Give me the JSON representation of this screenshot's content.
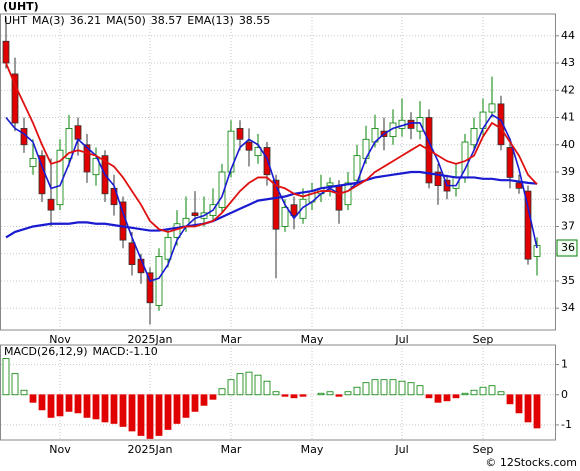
{
  "chart_data": [
    {
      "type": "candlestick",
      "title": "(UHT)",
      "ticker": "UHT",
      "categories": [
        null,
        null,
        null,
        null,
        null,
        null,
        "Nov",
        null,
        null,
        null,
        null,
        null,
        null,
        null,
        null,
        null,
        "2025Jan",
        null,
        null,
        null,
        null,
        null,
        null,
        null,
        null,
        "Mar",
        null,
        null,
        null,
        null,
        null,
        null,
        null,
        null,
        "May",
        null,
        null,
        null,
        null,
        null,
        null,
        null,
        null,
        null,
        "Jul",
        null,
        null,
        null,
        null,
        null,
        null,
        null,
        null,
        "Sep",
        null,
        null,
        null,
        null,
        null,
        null
      ],
      "open": [
        43.8,
        42.6,
        40.6,
        39.2,
        39.6,
        38.0,
        37.8,
        39.5,
        40.7,
        40.0,
        38.9,
        39.6,
        38.4,
        37.9,
        36.4,
        35.8,
        35.3,
        34.1,
        35.8,
        36.6,
        37.0,
        37.5,
        37.3,
        37.4,
        37.7,
        39.0,
        40.6,
        40.1,
        39.6,
        39.9,
        38.7,
        37.0,
        37.8,
        37.3,
        37.9,
        38.2,
        38.5,
        38.5,
        37.8,
        38.7,
        39.5,
        40.1,
        40.5,
        40.3,
        40.6,
        40.9,
        40.5,
        41.0,
        39.0,
        38.7,
        38.4,
        38.8,
        40.0,
        40.6,
        41.2,
        41.5,
        39.9,
        38.6,
        38.3,
        35.9
      ],
      "high": [
        44.7,
        43.2,
        41.0,
        40.2,
        39.8,
        39.5,
        40.2,
        41.1,
        41.0,
        40.4,
        39.9,
        39.8,
        38.9,
        38.1,
        36.8,
        36.0,
        35.5,
        36.2,
        36.9,
        37.6,
        38.1,
        38.3,
        38.1,
        38.4,
        39.3,
        40.9,
        40.9,
        40.6,
        40.4,
        40.1,
        38.9,
        38.0,
        38.1,
        38.4,
        38.6,
        38.9,
        38.8,
        38.7,
        39.0,
        40.0,
        40.7,
        41.1,
        41.0,
        41.3,
        41.7,
        41.2,
        41.6,
        41.3,
        39.3,
        38.9,
        39.3,
        40.4,
        41.0,
        41.7,
        42.5,
        41.8,
        40.2,
        38.9,
        38.5,
        36.6
      ],
      "low": [
        42.8,
        40.5,
        39.7,
        38.9,
        37.9,
        37.0,
        37.6,
        39.2,
        39.6,
        38.6,
        38.5,
        37.9,
        37.4,
        36.2,
        35.2,
        34.9,
        33.4,
        33.9,
        35.5,
        36.3,
        36.8,
        37.0,
        37.0,
        37.2,
        37.5,
        38.8,
        39.8,
        39.2,
        39.3,
        38.5,
        35.1,
        36.8,
        36.9,
        37.1,
        37.6,
        37.9,
        38.1,
        37.1,
        37.6,
        38.5,
        39.3,
        39.9,
        39.8,
        40.0,
        40.3,
        40.2,
        40.2,
        38.4,
        37.8,
        38.0,
        38.1,
        38.6,
        39.8,
        40.3,
        41.0,
        39.8,
        38.4,
        38.2,
        35.6,
        35.2
      ],
      "close": [
        43.0,
        40.8,
        40.0,
        39.5,
        38.2,
        37.6,
        39.8,
        40.6,
        40.2,
        39.0,
        39.5,
        38.2,
        37.8,
        36.5,
        35.6,
        35.3,
        34.2,
        35.9,
        36.6,
        37.1,
        37.3,
        37.4,
        37.5,
        37.8,
        39.0,
        40.5,
        40.2,
        39.8,
        39.9,
        38.9,
        36.9,
        37.7,
        37.4,
        38.0,
        38.3,
        38.4,
        38.6,
        37.6,
        38.6,
        39.6,
        40.2,
        40.6,
        40.3,
        40.8,
        40.9,
        40.6,
        41.0,
        38.6,
        38.5,
        38.3,
        38.8,
        40.1,
        40.6,
        41.2,
        41.5,
        40.0,
        38.8,
        38.4,
        35.8,
        36.3
      ],
      "up_color": "#008000",
      "down_color": "#e00000",
      "series": [
        {
          "name": "MA(3)",
          "last": 36.21,
          "color": "#1a1ad0",
          "width": 1.6,
          "values": [
            41.0,
            40.6,
            40.4,
            40.1,
            39.2,
            38.4,
            38.5,
            39.3,
            40.2,
            39.9,
            39.6,
            38.9,
            38.5,
            37.5,
            36.6,
            35.8,
            35.0,
            35.1,
            35.6,
            36.5,
            37.0,
            37.3,
            37.4,
            37.6,
            38.1,
            39.1,
            39.9,
            40.2,
            40.0,
            39.5,
            38.5,
            37.8,
            37.3,
            37.7,
            37.9,
            38.2,
            38.4,
            38.2,
            38.3,
            38.6,
            39.5,
            40.1,
            40.4,
            40.6,
            40.7,
            40.8,
            40.8,
            40.1,
            39.4,
            38.5,
            38.5,
            39.1,
            39.8,
            40.6,
            41.1,
            40.9,
            40.2,
            39.1,
            37.7,
            36.21
          ]
        },
        {
          "name": "MA(50)",
          "last": 38.57,
          "color": "#1a1ad0",
          "width": 2.2,
          "values": [
            36.6,
            36.8,
            36.9,
            37.0,
            37.05,
            37.1,
            37.1,
            37.1,
            37.15,
            37.15,
            37.1,
            37.1,
            37.05,
            37.0,
            36.95,
            36.9,
            36.85,
            36.85,
            36.9,
            36.95,
            37.0,
            37.05,
            37.1,
            37.2,
            37.35,
            37.5,
            37.65,
            37.8,
            37.95,
            38.0,
            38.05,
            38.1,
            38.2,
            38.25,
            38.3,
            38.4,
            38.45,
            38.5,
            38.55,
            38.6,
            38.7,
            38.8,
            38.85,
            38.9,
            38.95,
            39.0,
            39.0,
            38.95,
            38.9,
            38.85,
            38.8,
            38.8,
            38.8,
            38.75,
            38.75,
            38.7,
            38.7,
            38.65,
            38.6,
            38.57
          ]
        },
        {
          "name": "EMA(13)",
          "last": 38.55,
          "color": "#e01010",
          "width": 1.8,
          "values": [
            43.0,
            42.2,
            41.5,
            40.8,
            40.0,
            39.3,
            39.4,
            39.7,
            39.8,
            39.7,
            39.6,
            39.4,
            39.2,
            38.8,
            38.3,
            37.8,
            37.2,
            36.9,
            36.8,
            36.9,
            37.0,
            37.0,
            37.1,
            37.2,
            37.5,
            37.9,
            38.3,
            38.6,
            38.8,
            38.8,
            38.5,
            38.4,
            38.2,
            38.1,
            38.2,
            38.3,
            38.3,
            38.2,
            38.3,
            38.5,
            38.7,
            39.0,
            39.2,
            39.4,
            39.6,
            39.8,
            40.0,
            39.8,
            39.6,
            39.4,
            39.3,
            39.4,
            39.6,
            40.3,
            40.8,
            40.6,
            40.1,
            39.6,
            38.9,
            38.55
          ]
        }
      ],
      "last_price": {
        "value": 36.21,
        "label": "36"
      },
      "ylim": [
        33.2,
        44.8
      ],
      "yticks": [
        34,
        35,
        36,
        37,
        38,
        39,
        40,
        41,
        42,
        43,
        44
      ],
      "grid": true
    },
    {
      "type": "bar",
      "title": "MACD(26,12,9)",
      "subtitle": "MACD:-1.10",
      "categories": [
        null,
        null,
        null,
        null,
        null,
        null,
        "Nov",
        null,
        null,
        null,
        null,
        null,
        null,
        null,
        null,
        null,
        "2025Jan",
        null,
        null,
        null,
        null,
        null,
        null,
        null,
        null,
        "Mar",
        null,
        null,
        null,
        null,
        null,
        null,
        null,
        null,
        "May",
        null,
        null,
        null,
        null,
        null,
        null,
        null,
        null,
        null,
        "Jul",
        null,
        null,
        null,
        null,
        null,
        null,
        null,
        null,
        "Sep",
        null,
        null,
        null,
        null,
        null,
        null
      ],
      "values": [
        1.2,
        0.7,
        0.15,
        -0.25,
        -0.5,
        -0.75,
        -0.7,
        -0.55,
        -0.6,
        -0.75,
        -0.8,
        -0.9,
        -0.95,
        -1.05,
        -1.2,
        -1.35,
        -1.45,
        -1.35,
        -1.15,
        -0.95,
        -0.75,
        -0.55,
        -0.35,
        -0.15,
        0.2,
        0.5,
        0.7,
        0.75,
        0.65,
        0.45,
        0.1,
        -0.05,
        -0.1,
        -0.05,
        0.0,
        0.05,
        0.1,
        -0.05,
        0.1,
        0.25,
        0.4,
        0.5,
        0.5,
        0.5,
        0.45,
        0.4,
        0.3,
        -0.1,
        -0.25,
        -0.2,
        -0.1,
        0.05,
        0.15,
        0.25,
        0.3,
        0.1,
        -0.3,
        -0.6,
        -0.9,
        -1.1
      ],
      "up_color": "#008000",
      "down_color": "#e00000",
      "ylim": [
        -1.5,
        1.65
      ],
      "yticks": [
        -1,
        0,
        1
      ],
      "grid": true
    }
  ],
  "footer": "© 12Stocks.com"
}
